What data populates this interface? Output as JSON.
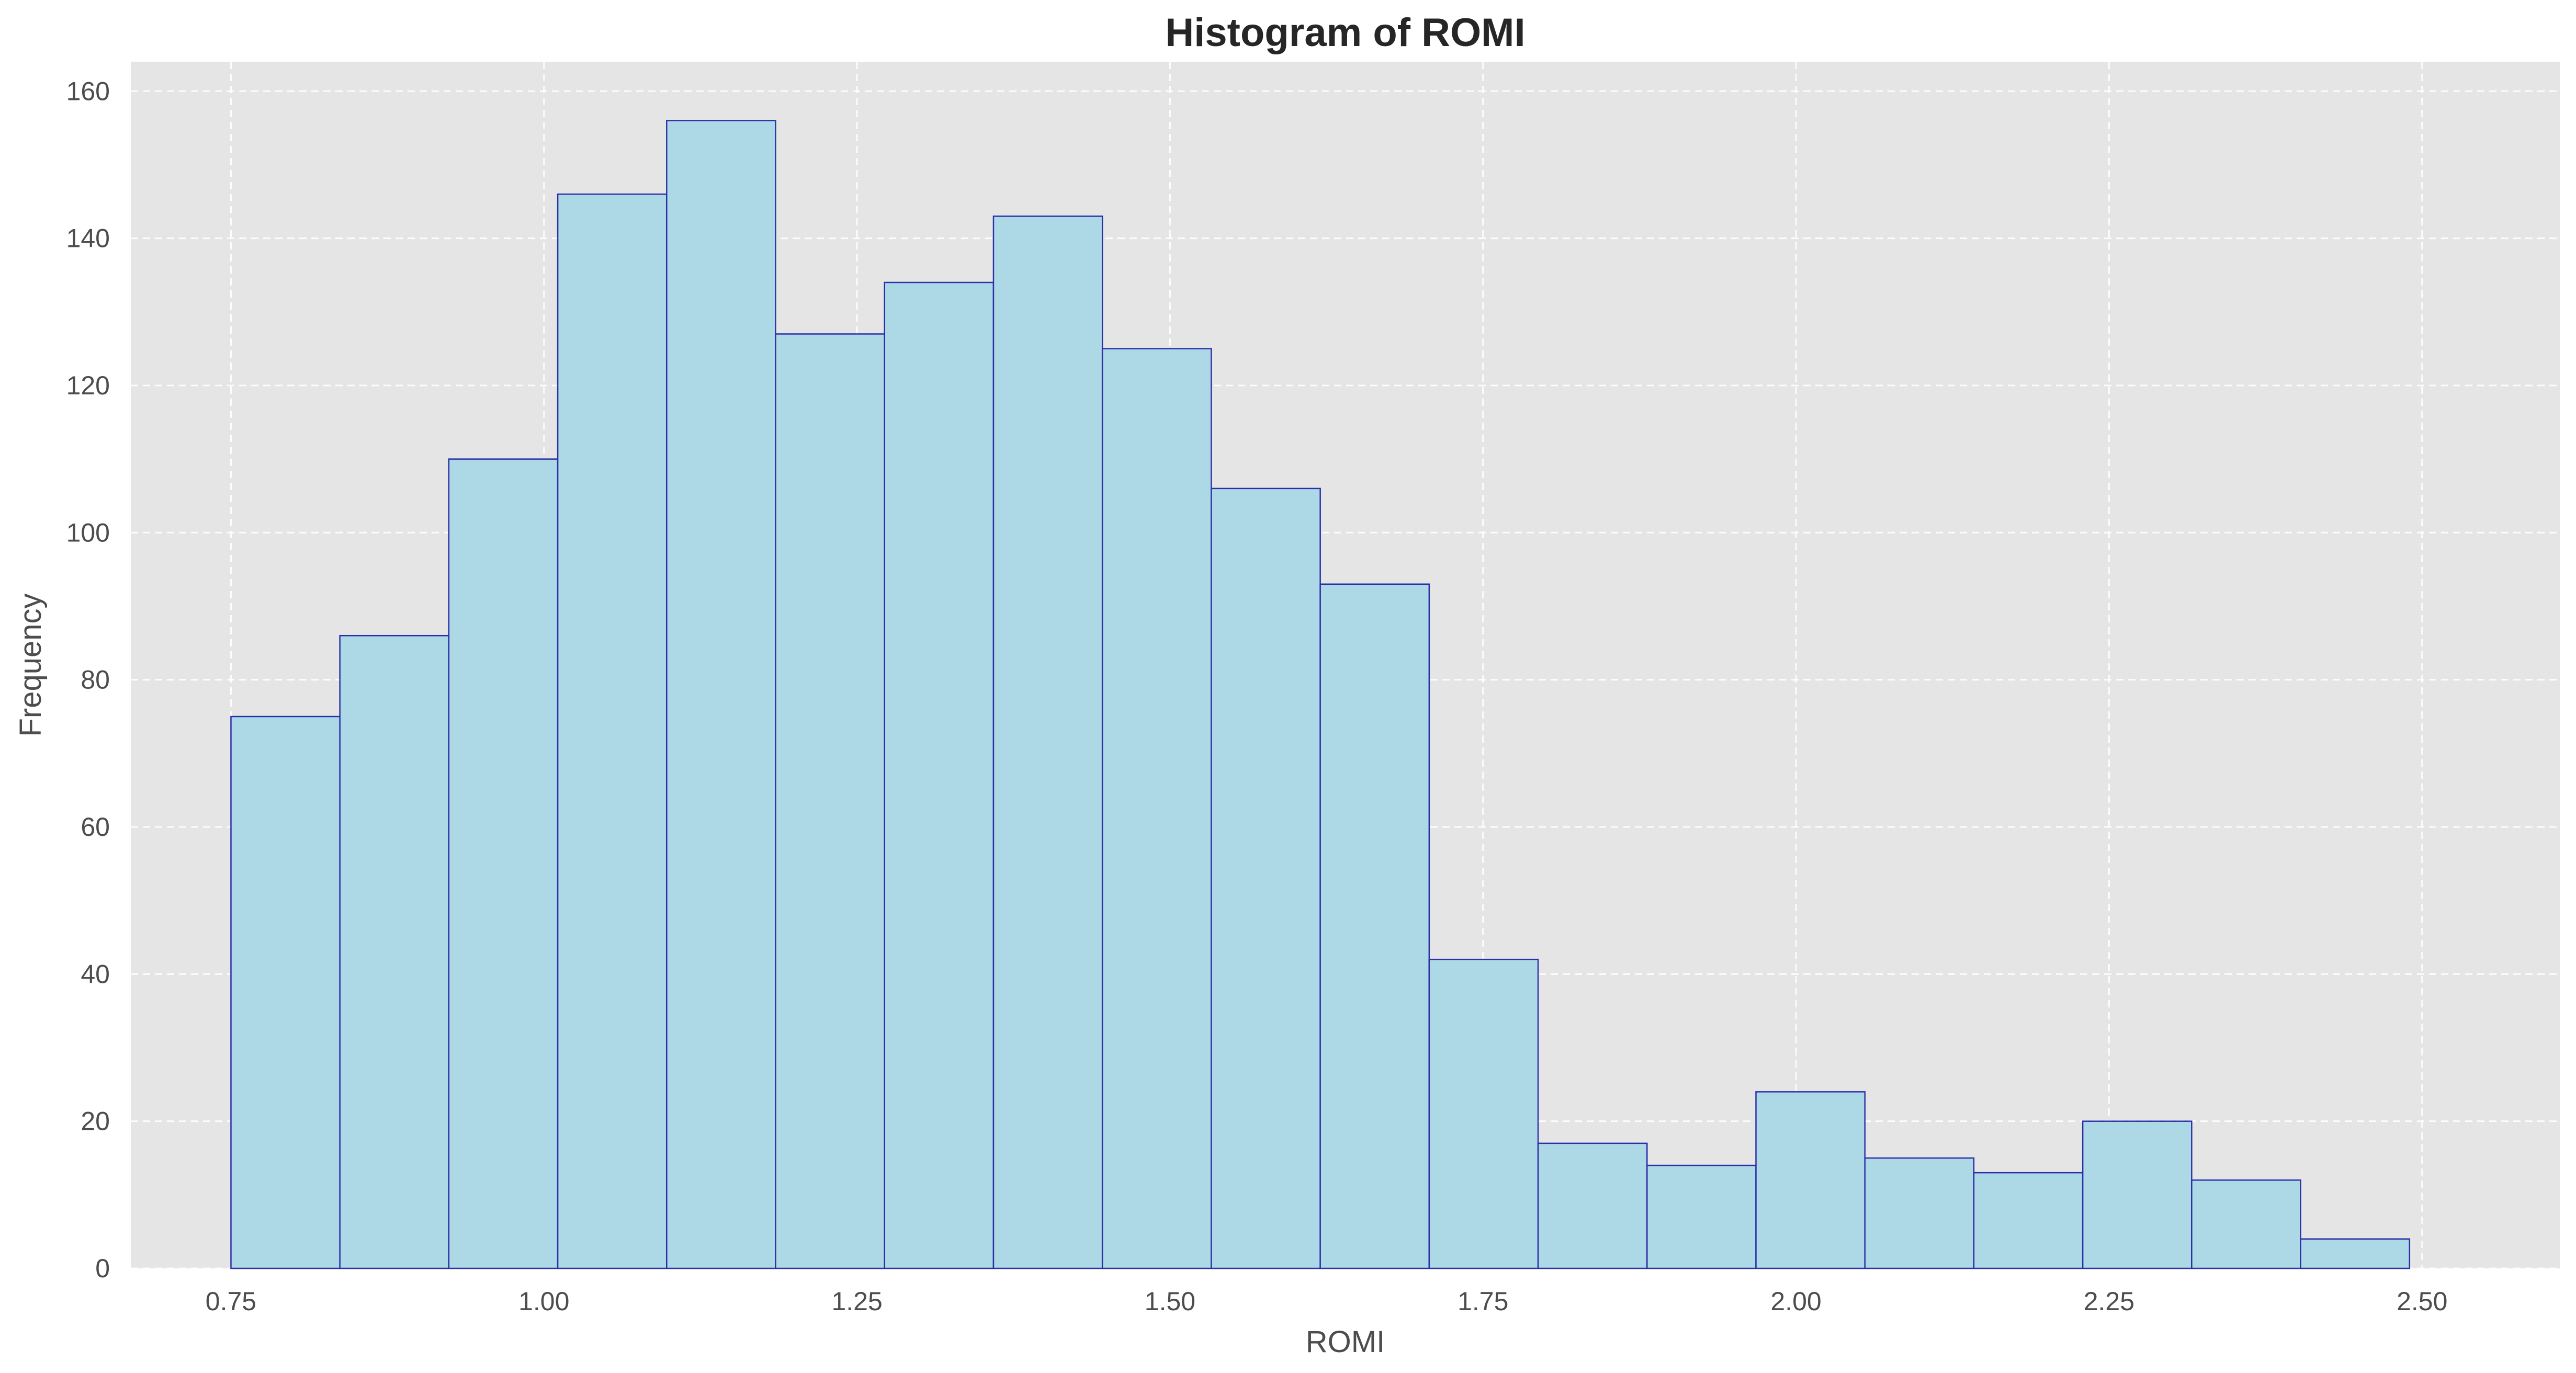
{
  "chart_data": {
    "type": "bar",
    "title": "Histogram of ROMI",
    "xlabel": "ROMI",
    "ylabel": "Frequency",
    "xlim": [
      0.67,
      2.61
    ],
    "ylim": [
      0,
      164
    ],
    "grid": true,
    "bin_edges": [
      0.75,
      0.837,
      0.924,
      1.011,
      1.098,
      1.185,
      1.272,
      1.359,
      1.446,
      1.533,
      1.62,
      1.707,
      1.794,
      1.881,
      1.968,
      2.055,
      2.142,
      2.229,
      2.316,
      2.403,
      2.49
    ],
    "values": [
      75,
      86,
      110,
      146,
      156,
      127,
      134,
      143,
      125,
      106,
      93,
      42,
      17,
      14,
      24,
      15,
      13,
      20,
      12,
      4
    ],
    "x_ticks": [
      "0.75",
      "1.00",
      "1.25",
      "1.50",
      "1.75",
      "2.00",
      "2.25",
      "2.50"
    ],
    "y_ticks": [
      "0",
      "20",
      "40",
      "60",
      "80",
      "100",
      "120",
      "140",
      "160"
    ],
    "colors": {
      "plot_background": "#e5e5e5",
      "bar_fill": "#add8e6",
      "bar_edge": "#2b2fa8",
      "grid": "#ffffff",
      "text": "#4d4d4d",
      "title": "#262626"
    }
  }
}
